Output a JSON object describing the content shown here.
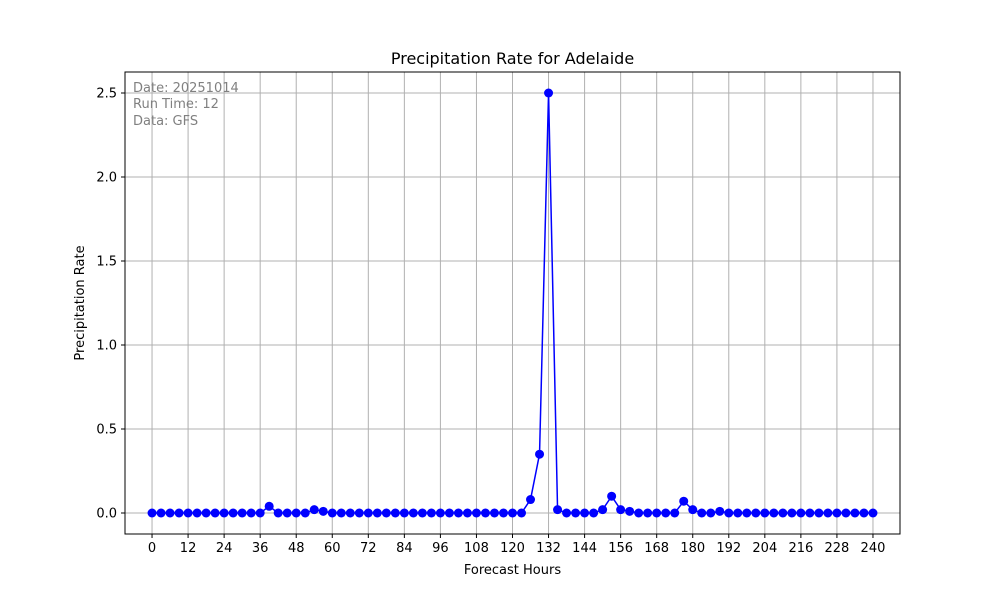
{
  "chart_data": {
    "type": "line",
    "title": "Precipitation Rate for Adelaide",
    "xlabel": "Forecast Hours",
    "ylabel": "Precipitation Rate",
    "annotations": [
      "Date: 20251014",
      "Run Time: 12",
      "Data: GFS"
    ],
    "xlim": [
      -9,
      249
    ],
    "ylim": [
      -0.125,
      2.625
    ],
    "xticks": [
      0,
      12,
      24,
      36,
      48,
      60,
      72,
      84,
      96,
      108,
      120,
      132,
      144,
      156,
      168,
      180,
      192,
      204,
      216,
      228,
      240
    ],
    "yticks": [
      0.0,
      0.5,
      1.0,
      1.5,
      2.0,
      2.5
    ],
    "ytick_labels": [
      "0.0",
      "0.5",
      "1.0",
      "1.5",
      "2.0",
      "2.5"
    ],
    "grid": true,
    "color": "#0000ff",
    "marker": "circle",
    "series": [
      {
        "x": [
          0,
          3,
          6,
          9,
          12,
          15,
          18,
          21,
          24,
          27,
          30,
          33,
          36,
          39,
          42,
          45,
          48,
          51,
          54,
          57,
          60,
          63,
          66,
          69,
          72,
          75,
          78,
          81,
          84,
          87,
          90,
          93,
          96,
          99,
          102,
          105,
          108,
          111,
          114,
          117,
          120,
          123,
          126,
          129,
          132,
          135,
          138,
          141,
          144,
          147,
          150,
          153,
          156,
          159,
          162,
          165,
          168,
          171,
          174,
          177,
          180,
          183,
          186,
          189,
          192,
          195,
          198,
          201,
          204,
          207,
          210,
          213,
          216,
          219,
          222,
          225,
          228,
          231,
          234,
          237,
          240
        ],
        "y": [
          0,
          0,
          0,
          0,
          0,
          0,
          0,
          0,
          0,
          0,
          0,
          0,
          0,
          0.04,
          0,
          0,
          0,
          0,
          0.02,
          0.01,
          0,
          0,
          0,
          0,
          0,
          0,
          0,
          0,
          0,
          0,
          0,
          0,
          0,
          0,
          0,
          0,
          0,
          0,
          0,
          0,
          0,
          0,
          0.08,
          0.35,
          2.5,
          0.02,
          0,
          0,
          0,
          0,
          0.02,
          0.1,
          0.02,
          0.01,
          0,
          0,
          0,
          0,
          0,
          0.07,
          0.02,
          0,
          0,
          0.01,
          0,
          0,
          0,
          0,
          0,
          0,
          0,
          0,
          0,
          0,
          0,
          0,
          0,
          0,
          0,
          0,
          0
        ]
      }
    ]
  }
}
